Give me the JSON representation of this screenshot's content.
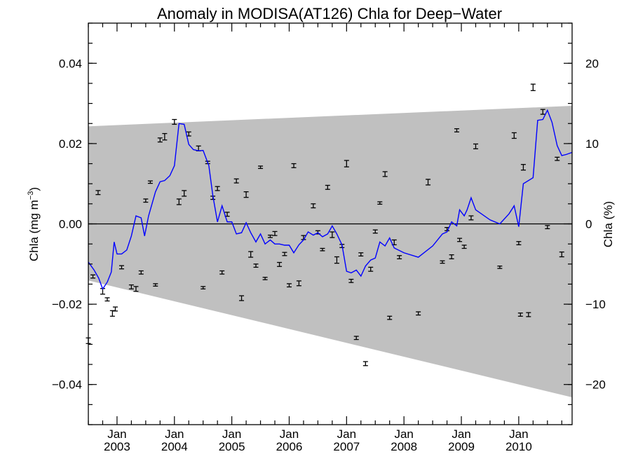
{
  "chart_data": {
    "type": "line",
    "title": "Anomaly in MODISA(AT126) Chla for Deep−Water",
    "ylabel_left": "Chla (mg m",
    "ylabel_left_sup": "−3",
    "ylabel_left_close": ")",
    "ylabel_right": "Chla (%)",
    "xlim": [
      2002.5,
      2010.93
    ],
    "ylim": [
      -0.05,
      0.05
    ],
    "ylim_right": [
      -25,
      25
    ],
    "x_ticks": [
      {
        "value": 2003.0,
        "month": "Jan",
        "year": "2003"
      },
      {
        "value": 2004.0,
        "month": "Jan",
        "year": "2004"
      },
      {
        "value": 2005.0,
        "month": "Jan",
        "year": "2005"
      },
      {
        "value": 2006.0,
        "month": "Jan",
        "year": "2006"
      },
      {
        "value": 2007.0,
        "month": "Jan",
        "year": "2007"
      },
      {
        "value": 2008.0,
        "month": "Jan",
        "year": "2008"
      },
      {
        "value": 2009.0,
        "month": "Jan",
        "year": "2009"
      },
      {
        "value": 2010.0,
        "month": "Jan",
        "year": "2010"
      }
    ],
    "y_ticks_left": [
      {
        "value": -0.04,
        "label": "−0.04"
      },
      {
        "value": -0.02,
        "label": "−0.02"
      },
      {
        "value": 0.0,
        "label": "0.00"
      },
      {
        "value": 0.02,
        "label": "0.02"
      },
      {
        "value": 0.04,
        "label": "0.04"
      }
    ],
    "y_ticks_right": [
      {
        "value": -20,
        "label": "−20"
      },
      {
        "value": -10,
        "label": "−10"
      },
      {
        "value": 0,
        "label": "0"
      },
      {
        "value": 10,
        "label": "10"
      },
      {
        "value": 20,
        "label": "20"
      }
    ],
    "uncertainty_band": {
      "color": "#c0c0c0",
      "x": [
        2002.5,
        2010.93
      ],
      "upper": [
        0.0243,
        0.0294
      ],
      "lower": [
        -0.0141,
        -0.0432
      ]
    },
    "zero_line": 0.0,
    "smoothed_series": {
      "color": "#0000ff",
      "points": [
        [
          2002.5,
          -0.0095
        ],
        [
          2002.6,
          -0.0115
        ],
        [
          2002.68,
          -0.0135
        ],
        [
          2002.75,
          -0.0162
        ],
        [
          2002.83,
          -0.0145
        ],
        [
          2002.9,
          -0.012
        ],
        [
          2002.95,
          -0.0045
        ],
        [
          2003.0,
          -0.0075
        ],
        [
          2003.08,
          -0.0075
        ],
        [
          2003.17,
          -0.0065
        ],
        [
          2003.25,
          -0.003
        ],
        [
          2003.33,
          0.002
        ],
        [
          2003.42,
          0.0015
        ],
        [
          2003.48,
          -0.003
        ],
        [
          2003.55,
          0.002
        ],
        [
          2003.67,
          0.008
        ],
        [
          2003.75,
          0.0105
        ],
        [
          2003.83,
          0.0108
        ],
        [
          2003.92,
          0.012
        ],
        [
          2004.0,
          0.0145
        ],
        [
          2004.08,
          0.025
        ],
        [
          2004.17,
          0.0248
        ],
        [
          2004.25,
          0.0198
        ],
        [
          2004.33,
          0.0185
        ],
        [
          2004.42,
          0.0182
        ],
        [
          2004.5,
          0.0183
        ],
        [
          2004.6,
          0.0145
        ],
        [
          2004.67,
          0.007
        ],
        [
          2004.75,
          0.0005
        ],
        [
          2004.83,
          0.0045
        ],
        [
          2004.92,
          0.0005
        ],
        [
          2005.0,
          0.0005
        ],
        [
          2005.08,
          -0.0025
        ],
        [
          2005.17,
          -0.0022
        ],
        [
          2005.25,
          0.0003
        ],
        [
          2005.33,
          -0.0022
        ],
        [
          2005.42,
          -0.0045
        ],
        [
          2005.5,
          -0.0025
        ],
        [
          2005.58,
          -0.005
        ],
        [
          2005.67,
          -0.004
        ],
        [
          2005.75,
          -0.005
        ],
        [
          2005.83,
          -0.005
        ],
        [
          2005.92,
          -0.0053
        ],
        [
          2006.0,
          -0.0053
        ],
        [
          2006.08,
          -0.0072
        ],
        [
          2006.17,
          -0.0052
        ],
        [
          2006.25,
          -0.004
        ],
        [
          2006.33,
          -0.002
        ],
        [
          2006.42,
          -0.0028
        ],
        [
          2006.5,
          -0.0022
        ],
        [
          2006.58,
          -0.0032
        ],
        [
          2006.67,
          -0.0025
        ],
        [
          2006.75,
          -0.0005
        ],
        [
          2006.83,
          -0.0025
        ],
        [
          2006.92,
          -0.0052
        ],
        [
          2007.0,
          -0.0118
        ],
        [
          2007.08,
          -0.0122
        ],
        [
          2007.17,
          -0.0115
        ],
        [
          2007.25,
          -0.013
        ],
        [
          2007.33,
          -0.0105
        ],
        [
          2007.42,
          -0.009
        ],
        [
          2007.5,
          -0.0085
        ],
        [
          2007.58,
          -0.0045
        ],
        [
          2007.67,
          -0.0055
        ],
        [
          2007.75,
          -0.0035
        ],
        [
          2007.83,
          -0.006
        ],
        [
          2008.0,
          -0.0072
        ],
        [
          2008.25,
          -0.0083
        ],
        [
          2008.5,
          -0.0055
        ],
        [
          2008.67,
          -0.0025
        ],
        [
          2008.75,
          -0.002
        ],
        [
          2008.83,
          0.0005
        ],
        [
          2008.92,
          -0.0005
        ],
        [
          2008.97,
          0.0035
        ],
        [
          2009.05,
          0.002
        ],
        [
          2009.1,
          0.0035
        ],
        [
          2009.17,
          0.0065
        ],
        [
          2009.25,
          0.0035
        ],
        [
          2009.5,
          0.001
        ],
        [
          2009.67,
          0.0
        ],
        [
          2009.83,
          0.0025
        ],
        [
          2009.92,
          0.0045
        ],
        [
          2010.0,
          -0.0007
        ],
        [
          2010.08,
          0.01
        ],
        [
          2010.25,
          0.0115
        ],
        [
          2010.33,
          0.0258
        ],
        [
          2010.42,
          0.026
        ],
        [
          2010.5,
          0.0283
        ],
        [
          2010.58,
          0.0253
        ],
        [
          2010.67,
          0.0195
        ],
        [
          2010.75,
          0.017
        ],
        [
          2010.83,
          0.0173
        ],
        [
          2010.93,
          0.0178
        ]
      ]
    },
    "error_bar_points": [
      [
        2002.5,
        -0.0291,
        0.0007
      ],
      [
        2002.58,
        -0.0131,
        0.0004
      ],
      [
        2002.67,
        0.0078,
        0.0005
      ],
      [
        2002.75,
        -0.0168,
        0.0007
      ],
      [
        2002.83,
        -0.0188,
        0.0004
      ],
      [
        2002.92,
        -0.0223,
        0.0007
      ],
      [
        2002.97,
        -0.0212,
        0.0005
      ],
      [
        2003.08,
        -0.0108,
        0.0004
      ],
      [
        2003.25,
        -0.0157,
        0.0005
      ],
      [
        2003.33,
        -0.0162,
        0.0006
      ],
      [
        2003.42,
        -0.0121,
        0.0004
      ],
      [
        2003.5,
        0.0058,
        0.0004
      ],
      [
        2003.58,
        0.0104,
        0.0003
      ],
      [
        2003.67,
        -0.0152,
        0.0003
      ],
      [
        2003.75,
        0.0209,
        0.0005
      ],
      [
        2003.83,
        0.0217,
        0.0008
      ],
      [
        2004.0,
        0.0254,
        0.0006
      ],
      [
        2004.08,
        0.0055,
        0.0007
      ],
      [
        2004.17,
        0.0076,
        0.0007
      ],
      [
        2004.25,
        0.0224,
        0.0005
      ],
      [
        2004.42,
        0.0188,
        0.0006
      ],
      [
        2004.5,
        -0.0159,
        0.0003
      ],
      [
        2004.58,
        0.0153,
        0.0003
      ],
      [
        2004.67,
        0.0065,
        0.0004
      ],
      [
        2004.75,
        0.0088,
        0.0005
      ],
      [
        2004.83,
        -0.0121,
        0.0004
      ],
      [
        2004.92,
        0.0024,
        0.0005
      ],
      [
        2005.08,
        0.0107,
        0.0005
      ],
      [
        2005.17,
        -0.0185,
        0.0006
      ],
      [
        2005.25,
        0.0073,
        0.0007
      ],
      [
        2005.33,
        -0.0076,
        0.0007
      ],
      [
        2005.42,
        -0.0104,
        0.0004
      ],
      [
        2005.5,
        0.0141,
        0.0003
      ],
      [
        2005.58,
        -0.0136,
        0.0003
      ],
      [
        2005.67,
        -0.0031,
        0.0003
      ],
      [
        2005.75,
        -0.0024,
        0.0005
      ],
      [
        2005.83,
        -0.0101,
        0.0005
      ],
      [
        2005.92,
        -0.0075,
        0.0004
      ],
      [
        2006.0,
        -0.0153,
        0.0004
      ],
      [
        2006.08,
        0.0145,
        0.0005
      ],
      [
        2006.17,
        -0.0148,
        0.0006
      ],
      [
        2006.25,
        -0.0034,
        0.0005
      ],
      [
        2006.42,
        0.0045,
        0.0005
      ],
      [
        2006.5,
        -0.0021,
        0.0004
      ],
      [
        2006.58,
        -0.0064,
        0.0003
      ],
      [
        2006.67,
        0.0091,
        0.0005
      ],
      [
        2006.75,
        -0.0027,
        0.0007
      ],
      [
        2006.83,
        -0.009,
        0.0008
      ],
      [
        2006.92,
        -0.0055,
        0.0004
      ],
      [
        2007.0,
        0.015,
        0.0008
      ],
      [
        2007.08,
        -0.0142,
        0.0004
      ],
      [
        2007.17,
        -0.0284,
        0.0004
      ],
      [
        2007.25,
        -0.0076,
        0.0004
      ],
      [
        2007.33,
        -0.0348,
        0.0005
      ],
      [
        2007.42,
        -0.0113,
        0.0005
      ],
      [
        2007.5,
        -0.0019,
        0.0004
      ],
      [
        2007.58,
        0.0052,
        0.0003
      ],
      [
        2007.67,
        0.0124,
        0.0006
      ],
      [
        2007.75,
        -0.0234,
        0.0004
      ],
      [
        2007.83,
        -0.0046,
        0.0006
      ],
      [
        2007.92,
        -0.0083,
        0.0004
      ],
      [
        2008.25,
        -0.0223,
        0.0004
      ],
      [
        2008.42,
        0.0104,
        0.0007
      ],
      [
        2008.67,
        -0.0095,
        0.0003
      ],
      [
        2008.75,
        -0.0013,
        0.0004
      ],
      [
        2008.83,
        -0.0082,
        0.0005
      ],
      [
        2008.92,
        0.0233,
        0.0004
      ],
      [
        2008.97,
        -0.004,
        0.0004
      ],
      [
        2009.05,
        -0.0057,
        0.0004
      ],
      [
        2009.17,
        0.0015,
        0.0005
      ],
      [
        2009.25,
        0.0193,
        0.0006
      ],
      [
        2009.67,
        -0.0108,
        0.0003
      ],
      [
        2009.92,
        0.022,
        0.0007
      ],
      [
        2010.0,
        -0.0048,
        0.0004
      ],
      [
        2010.03,
        -0.0226,
        0.0004
      ],
      [
        2010.08,
        0.0141,
        0.0007
      ],
      [
        2010.17,
        -0.0226,
        0.0005
      ],
      [
        2010.25,
        0.034,
        0.0008
      ],
      [
        2010.42,
        0.0279,
        0.0006
      ],
      [
        2010.5,
        -0.0008,
        0.0004
      ],
      [
        2010.67,
        0.0162,
        0.0004
      ],
      [
        2010.75,
        -0.0076,
        0.0006
      ]
    ]
  }
}
